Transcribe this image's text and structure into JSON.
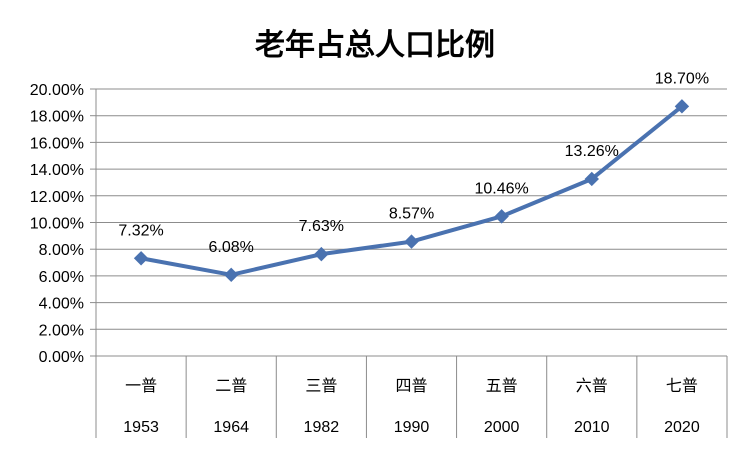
{
  "chart_data": {
    "type": "line",
    "title": "老年占总人口比例",
    "xlabel": "",
    "ylabel": "",
    "categories": [
      [
        "一普",
        "1953"
      ],
      [
        "二普",
        "1964"
      ],
      [
        "三普",
        "1982"
      ],
      [
        "四普",
        "1990"
      ],
      [
        "五普",
        "2000"
      ],
      [
        "六普",
        "2010"
      ],
      [
        "七普",
        "2020"
      ]
    ],
    "series": [
      {
        "values": [
          7.32,
          6.08,
          7.63,
          8.57,
          10.46,
          13.26,
          18.7
        ],
        "labels": [
          "7.32%",
          "6.08%",
          "7.63%",
          "8.57%",
          "10.46%",
          "13.26%",
          "18.70%"
        ],
        "color": "#4a72b0",
        "marker": "diamond"
      }
    ],
    "ylim": [
      0,
      20
    ],
    "yticks": [
      "0.00%",
      "2.00%",
      "4.00%",
      "6.00%",
      "8.00%",
      "10.00%",
      "12.00%",
      "14.00%",
      "16.00%",
      "18.00%",
      "20.00%"
    ],
    "grid": true,
    "legend": "none",
    "colors": {
      "grid": "#8c8c8c",
      "line": "#4a72b0"
    }
  }
}
